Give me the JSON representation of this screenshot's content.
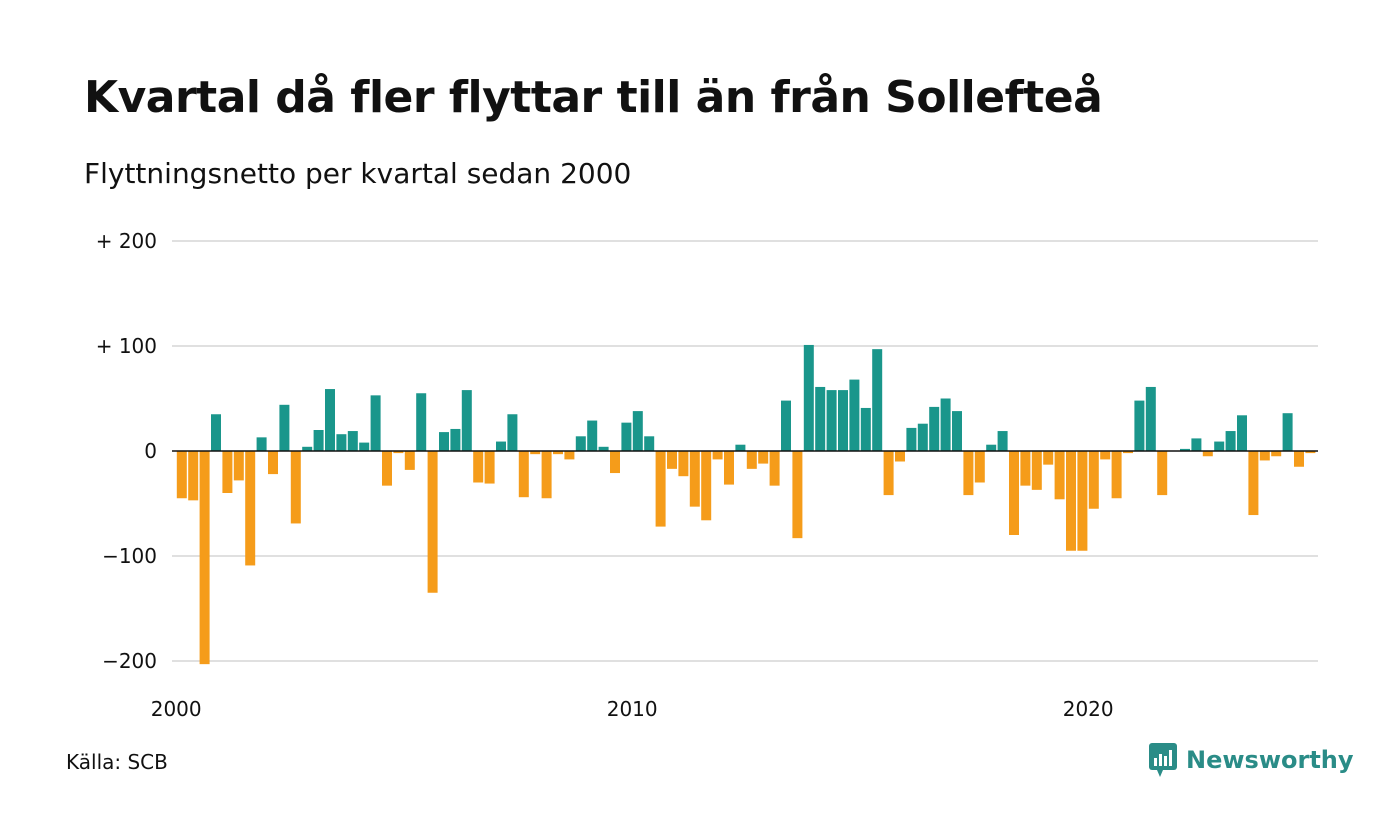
{
  "title": "Kvartal då fler flyttar till än från Sollefteå",
  "subtitle": "Flyttningsnetto per kvartal sedan 2000",
  "source": "Källa: SCB",
  "brand": "Newsworthy",
  "colors": {
    "positive": "#1a968b",
    "negative": "#f59c1a",
    "grid": "#e0e0e0",
    "zero_line": "#111111",
    "brand": "#2a8c87"
  },
  "chart_data": {
    "type": "bar",
    "title": "Kvartal då fler flyttar till än från Sollefteå",
    "subtitle": "Flyttningsnetto per kvartal sedan 2000",
    "xlabel": "",
    "ylabel": "",
    "ylim": [
      -200,
      200
    ],
    "y_ticks": [
      {
        "value": 200,
        "label": "+ 200"
      },
      {
        "value": 100,
        "label": "+ 100"
      },
      {
        "value": 0,
        "label": "0"
      },
      {
        "value": -100,
        "label": "−100"
      },
      {
        "value": -200,
        "label": "−200"
      }
    ],
    "x_ticks": [
      {
        "value": 2000,
        "label": "2000"
      },
      {
        "value": 2010,
        "label": "2010"
      },
      {
        "value": 2020,
        "label": "2020"
      }
    ],
    "grid": true,
    "start": "2000-Q1",
    "frequency": "quarterly",
    "values": [
      -45,
      -47,
      -203,
      35,
      -40,
      -28,
      -109,
      13,
      -22,
      44,
      -69,
      4,
      20,
      59,
      16,
      19,
      8,
      53,
      -33,
      -2,
      -18,
      55,
      -135,
      18,
      21,
      58,
      -30,
      -31,
      9,
      35,
      -44,
      -3,
      -45,
      -3,
      -8,
      14,
      29,
      4,
      -21,
      27,
      38,
      14,
      -72,
      -17,
      -24,
      -53,
      -66,
      -8,
      -32,
      6,
      -17,
      -12,
      -33,
      48,
      -83,
      101,
      61,
      58,
      58,
      68,
      41,
      97,
      -42,
      -10,
      22,
      26,
      42,
      50,
      38,
      -42,
      -30,
      6,
      19,
      -80,
      -33,
      -37,
      -13,
      -46,
      -95,
      -95,
      -55,
      -8,
      -45,
      -2,
      48,
      61,
      -42,
      0,
      2,
      12,
      -5,
      9,
      19,
      34,
      -61,
      -9,
      -5,
      36,
      -15,
      -2
    ]
  }
}
